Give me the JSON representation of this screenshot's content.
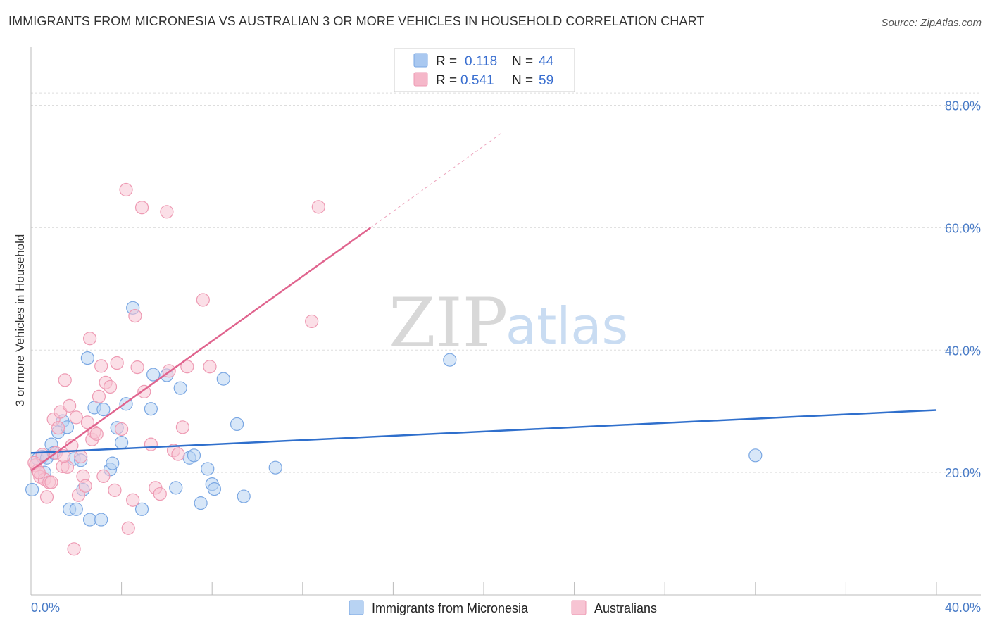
{
  "header": {
    "title": "IMMIGRANTS FROM MICRONESIA VS AUSTRALIAN 3 OR MORE VEHICLES IN HOUSEHOLD CORRELATION CHART",
    "source": "Source: ZipAtlas.com"
  },
  "watermark": {
    "zip": "ZIP",
    "atlas": "atlas"
  },
  "legend_box": {
    "rows": [
      {
        "r_label": "R =",
        "r_value": "0.118",
        "n_label": "N =",
        "n_value": "44",
        "color": "#a9c8f0"
      },
      {
        "r_label": "R =",
        "r_value": "0.541",
        "n_label": "N =",
        "n_value": "59",
        "color": "#f5b7c9"
      }
    ]
  },
  "chart_data": {
    "type": "scatter",
    "title": "IMMIGRANTS FROM MICRONESIA VS AUSTRALIAN 3 OR MORE VEHICLES IN HOUSEHOLD CORRELATION CHART",
    "xlabel": "",
    "ylabel": "3 or more Vehicles in Household",
    "xlim": [
      0,
      40
    ],
    "ylim": [
      0,
      88
    ],
    "x_tick_labels": [
      "0.0%",
      "40.0%"
    ],
    "y_ticks": [
      20,
      40,
      60,
      80
    ],
    "y_tick_labels": [
      "20.0%",
      "40.0%",
      "60.0%",
      "80.0%"
    ],
    "grid": true,
    "series": [
      {
        "name": "Immigrants from Micronesia",
        "color": "#7aa7e3",
        "fill": "#b8d3f3",
        "line_color": "#2f6fcc",
        "trend": {
          "x0": 0,
          "y0": 23.2,
          "x1": 40,
          "y1": 30.2
        },
        "points": [
          [
            0.05,
            17.2
          ],
          [
            0.3,
            22.2
          ],
          [
            0.5,
            22.6
          ],
          [
            0.6,
            20.0
          ],
          [
            0.7,
            22.4
          ],
          [
            0.9,
            24.6
          ],
          [
            1.0,
            23.2
          ],
          [
            1.2,
            26.6
          ],
          [
            1.4,
            28.4
          ],
          [
            1.6,
            27.4
          ],
          [
            1.7,
            14.0
          ],
          [
            1.9,
            22.2
          ],
          [
            2.0,
            14.0
          ],
          [
            2.2,
            22.0
          ],
          [
            2.3,
            17.2
          ],
          [
            2.5,
            38.7
          ],
          [
            2.6,
            12.3
          ],
          [
            2.8,
            30.6
          ],
          [
            3.1,
            12.3
          ],
          [
            3.2,
            30.3
          ],
          [
            3.5,
            20.5
          ],
          [
            3.6,
            21.5
          ],
          [
            3.8,
            27.3
          ],
          [
            4.0,
            24.9
          ],
          [
            4.2,
            31.2
          ],
          [
            4.5,
            46.9
          ],
          [
            4.9,
            14.0
          ],
          [
            5.3,
            30.4
          ],
          [
            5.4,
            36.0
          ],
          [
            6.4,
            17.5
          ],
          [
            6.6,
            33.8
          ],
          [
            7.0,
            22.4
          ],
          [
            7.2,
            22.8
          ],
          [
            7.5,
            15.0
          ],
          [
            7.8,
            20.6
          ],
          [
            8.0,
            18.1
          ],
          [
            8.1,
            17.3
          ],
          [
            8.5,
            35.3
          ],
          [
            9.1,
            27.9
          ],
          [
            9.4,
            16.1
          ],
          [
            10.8,
            20.8
          ],
          [
            18.5,
            38.4
          ],
          [
            32.0,
            22.8
          ],
          [
            6.0,
            35.9
          ]
        ]
      },
      {
        "name": "Australians",
        "color": "#ee9ab3",
        "fill": "#f7c4d3",
        "line_color": "#e0648e",
        "trend": {
          "x0": 0,
          "y0": 20.3,
          "x1": 15,
          "y1": 60.0
        },
        "trend_dashed": {
          "x0": 15,
          "y0": 60.0,
          "x1": 20.8,
          "y1": 75.5
        },
        "points": [
          [
            0.2,
            21.2
          ],
          [
            0.3,
            20.3
          ],
          [
            0.4,
            19.3
          ],
          [
            0.5,
            22.9
          ],
          [
            0.6,
            18.9
          ],
          [
            0.7,
            16.0
          ],
          [
            0.8,
            18.4
          ],
          [
            0.9,
            18.4
          ],
          [
            1.0,
            28.7
          ],
          [
            1.1,
            23.2
          ],
          [
            1.2,
            27.3
          ],
          [
            1.3,
            29.9
          ],
          [
            1.4,
            21.0
          ],
          [
            1.5,
            35.1
          ],
          [
            1.6,
            20.9
          ],
          [
            1.7,
            30.9
          ],
          [
            1.8,
            24.4
          ],
          [
            1.9,
            7.5
          ],
          [
            2.0,
            29.0
          ],
          [
            2.1,
            16.3
          ],
          [
            2.2,
            22.6
          ],
          [
            2.3,
            19.4
          ],
          [
            2.4,
            17.8
          ],
          [
            2.5,
            28.2
          ],
          [
            2.6,
            41.9
          ],
          [
            2.7,
            25.4
          ],
          [
            2.8,
            26.6
          ],
          [
            2.9,
            26.3
          ],
          [
            3.0,
            32.4
          ],
          [
            3.1,
            37.4
          ],
          [
            3.2,
            19.4
          ],
          [
            3.3,
            34.7
          ],
          [
            3.5,
            34.0
          ],
          [
            3.7,
            17.1
          ],
          [
            3.8,
            37.9
          ],
          [
            4.0,
            27.1
          ],
          [
            4.2,
            66.2
          ],
          [
            4.3,
            10.9
          ],
          [
            4.5,
            15.5
          ],
          [
            4.6,
            45.6
          ],
          [
            4.7,
            37.2
          ],
          [
            4.9,
            63.3
          ],
          [
            5.0,
            33.2
          ],
          [
            5.3,
            24.6
          ],
          [
            5.5,
            17.5
          ],
          [
            5.7,
            16.5
          ],
          [
            6.0,
            62.6
          ],
          [
            6.1,
            36.6
          ],
          [
            6.3,
            23.6
          ],
          [
            6.5,
            23.0
          ],
          [
            6.7,
            27.4
          ],
          [
            6.9,
            37.3
          ],
          [
            7.6,
            48.2
          ],
          [
            7.9,
            37.3
          ],
          [
            12.4,
            44.7
          ],
          [
            12.7,
            63.4
          ],
          [
            0.15,
            21.6
          ],
          [
            0.35,
            20.0
          ],
          [
            1.45,
            22.7
          ]
        ]
      }
    ]
  },
  "bottom_legend": {
    "items": [
      {
        "label": "Immigrants from Micronesia",
        "color": "#b8d3f3"
      },
      {
        "label": "Australians",
        "color": "#f7c4d3"
      }
    ]
  }
}
